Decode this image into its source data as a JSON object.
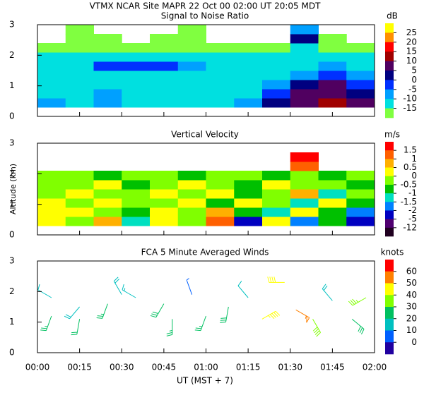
{
  "title": "VTMX  NCAR Site  MAPR 22 Oct 00  02:00 UT  20:05  MDT",
  "chart_data": [
    {
      "type": "heatmap",
      "title": "Signal to Noise Ratio",
      "x": [
        5,
        15,
        25,
        35,
        45,
        55,
        65,
        75,
        85,
        95,
        105,
        115
      ],
      "y": [
        0.45,
        0.75,
        1.05,
        1.35,
        1.65,
        1.95,
        2.25,
        2.55,
        2.85
      ],
      "z": [
        [
          -8,
          -10,
          -6,
          -10,
          -10,
          -12,
          -10,
          -8,
          2,
          8,
          12,
          8
        ],
        [
          -10,
          -12,
          -8,
          -10,
          -12,
          -12,
          -10,
          -10,
          -2,
          6,
          10,
          4
        ],
        [
          -12,
          -10,
          -10,
          -12,
          -12,
          -14,
          -12,
          -12,
          -6,
          2,
          6,
          -2
        ],
        [
          -14,
          -12,
          -12,
          -10,
          -12,
          -14,
          -14,
          -12,
          -10,
          -6,
          -4,
          -8
        ],
        [
          -12,
          -10,
          -2,
          -2,
          0,
          -8,
          -12,
          -12,
          -12,
          -10,
          -8,
          -10
        ],
        [
          -14,
          -14,
          -12,
          -12,
          -12,
          -14,
          -14,
          -14,
          -12,
          -14,
          -12,
          -12
        ],
        [
          -16,
          -16,
          -16,
          -17,
          -16,
          -16,
          -17,
          -16,
          -16,
          -14,
          -16,
          -16
        ],
        [
          null,
          -16,
          -16,
          null,
          -17,
          -16,
          null,
          null,
          null,
          5,
          -16,
          null
        ],
        [
          null,
          -17,
          null,
          null,
          null,
          -16,
          null,
          null,
          null,
          -8,
          null,
          null
        ]
      ],
      "xlim": [
        0,
        120
      ],
      "xticks": [
        {
          "value": 0,
          "label": "00:00"
        },
        {
          "value": 15,
          "label": "00:15"
        },
        {
          "value": 30,
          "label": "00:30"
        },
        {
          "value": 45,
          "label": "00:45"
        },
        {
          "value": 60,
          "label": "01:00"
        },
        {
          "value": 75,
          "label": "01:15"
        },
        {
          "value": 90,
          "label": "01:30"
        },
        {
          "value": 105,
          "label": "01:45"
        },
        {
          "value": 120,
          "label": "02:00"
        }
      ],
      "ylim": [
        0,
        3
      ],
      "yticks": [
        0,
        1,
        2,
        3
      ],
      "colorbar": {
        "label": "dB",
        "ticks": [
          25,
          20,
          15,
          10,
          5,
          0,
          -5,
          -10,
          -15
        ],
        "colors": [
          "#ffff00",
          "#ff9000",
          "#ff0000",
          "#a00000",
          "#500060",
          "#000080",
          "#0030ff",
          "#00a0ff",
          "#00e0e0",
          "#80ff40"
        ]
      }
    },
    {
      "type": "heatmap",
      "title": "Vertical Velocity",
      "ylabel": "Altitude (km)",
      "x": [
        5,
        15,
        25,
        35,
        45,
        55,
        65,
        75,
        85,
        95,
        105,
        115
      ],
      "y": [
        0.45,
        0.75,
        1.05,
        1.35,
        1.65,
        1.95,
        2.25,
        2.55,
        2.85
      ],
      "z": [
        [
          0.3,
          -0.3,
          0.6,
          -1.2,
          0.2,
          -0.4,
          1.2,
          -2.5,
          0.4,
          -1.6,
          -0.8,
          -3
        ],
        [
          0.4,
          0.1,
          -0.3,
          -0.6,
          0.3,
          -0.2,
          0.7,
          -0.7,
          -1.2,
          0.2,
          -0.7,
          -1.8
        ],
        [
          0.2,
          -0.2,
          0.1,
          -0.4,
          -0.3,
          0.3,
          -0.6,
          0.4,
          -0.2,
          -1.1,
          0.3,
          -0.6
        ],
        [
          -0.3,
          0.2,
          -0.4,
          -0.2,
          0.4,
          -0.3,
          0.1,
          -0.7,
          -0.4,
          0.6,
          -1.3,
          -0.4
        ],
        [
          -0.2,
          -0.4,
          0.3,
          -0.6,
          -0.1,
          0.2,
          -0.3,
          -0.6,
          0.3,
          -0.4,
          -0.2,
          -0.7
        ],
        [
          -0.4,
          -0.3,
          -0.6,
          -0.2,
          -0.4,
          -0.6,
          -0.2,
          -0.4,
          -0.7,
          -0.3,
          -0.6,
          -0.4
        ],
        [
          null,
          null,
          null,
          null,
          null,
          null,
          null,
          null,
          null,
          1.2,
          null,
          null
        ],
        [
          null,
          null,
          null,
          null,
          null,
          null,
          null,
          null,
          null,
          1.7,
          null,
          null
        ],
        [
          null,
          null,
          null,
          null,
          null,
          null,
          null,
          null,
          null,
          null,
          null,
          null
        ]
      ],
      "xlim": [
        0,
        120
      ],
      "xticks": [
        {
          "value": 0,
          "label": "00:00"
        },
        {
          "value": 15,
          "label": "00:15"
        },
        {
          "value": 30,
          "label": "00:30"
        },
        {
          "value": 45,
          "label": "00:45"
        },
        {
          "value": 60,
          "label": "01:00"
        },
        {
          "value": 75,
          "label": "01:15"
        },
        {
          "value": 90,
          "label": "01:30"
        },
        {
          "value": 105,
          "label": "01:45"
        },
        {
          "value": 120,
          "label": "02:00"
        }
      ],
      "ylim": [
        0,
        3
      ],
      "yticks": [
        0,
        1,
        2,
        3
      ],
      "colorbar": {
        "label": "m/s",
        "ticks": [
          1.5,
          1,
          0.5,
          0,
          -0.5,
          -1,
          -1.5,
          -2,
          -5,
          -12
        ],
        "colors": [
          "#ff0000",
          "#ff6000",
          "#ffb000",
          "#ffff00",
          "#80ff00",
          "#00c000",
          "#00e0c0",
          "#0080ff",
          "#0000c0",
          "#500070",
          "#200020"
        ]
      }
    },
    {
      "type": "barbs",
      "title": "FCA 5 Minute Averaged Winds",
      "xlabel": "UT  (MST + 7)",
      "barbs": [
        {
          "t": 5,
          "alt": 1.8,
          "speed": 12,
          "dir": 300
        },
        {
          "t": 5,
          "alt": 1.2,
          "speed": 25,
          "dir": 200
        },
        {
          "t": 15,
          "alt": 1.5,
          "speed": 20,
          "dir": 220
        },
        {
          "t": 15,
          "alt": 1.1,
          "speed": 22,
          "dir": 190
        },
        {
          "t": 25,
          "alt": 1.6,
          "speed": 25,
          "dir": 200
        },
        {
          "t": 30,
          "alt": 1.9,
          "speed": 20,
          "dir": 330
        },
        {
          "t": 35,
          "alt": 1.8,
          "speed": 15,
          "dir": 300
        },
        {
          "t": 45,
          "alt": 1.6,
          "speed": 30,
          "dir": 210
        },
        {
          "t": 48,
          "alt": 1.1,
          "speed": 25,
          "dir": 180
        },
        {
          "t": 55,
          "alt": 1.9,
          "speed": 8,
          "dir": 340
        },
        {
          "t": 60,
          "alt": 1.2,
          "speed": 25,
          "dir": 200
        },
        {
          "t": 68,
          "alt": 1.5,
          "speed": 30,
          "dir": 190
        },
        {
          "t": 75,
          "alt": 1.8,
          "speed": 12,
          "dir": 320
        },
        {
          "t": 80,
          "alt": 1.1,
          "speed": 45,
          "dir": 60
        },
        {
          "t": 88,
          "alt": 2.3,
          "speed": 42,
          "dir": 270
        },
        {
          "t": 92,
          "alt": 1.4,
          "speed": 55,
          "dir": 120
        },
        {
          "t": 98,
          "alt": 1.1,
          "speed": 40,
          "dir": 150
        },
        {
          "t": 105,
          "alt": 1.7,
          "speed": 20,
          "dir": 320
        },
        {
          "t": 112,
          "alt": 1.1,
          "speed": 30,
          "dir": 130
        },
        {
          "t": 117,
          "alt": 1.8,
          "speed": 35,
          "dir": 240
        }
      ],
      "xlim": [
        0,
        120
      ],
      "xticks": [
        {
          "value": 0,
          "label": "00:00"
        },
        {
          "value": 15,
          "label": "00:15"
        },
        {
          "value": 30,
          "label": "00:30"
        },
        {
          "value": 45,
          "label": "00:45"
        },
        {
          "value": 60,
          "label": "01:00"
        },
        {
          "value": 75,
          "label": "01:15"
        },
        {
          "value": 90,
          "label": "01:30"
        },
        {
          "value": 105,
          "label": "01:45"
        },
        {
          "value": 120,
          "label": "02:00"
        }
      ],
      "ylim": [
        0,
        3
      ],
      "yticks": [
        0,
        1,
        2,
        3
      ],
      "colorbar": {
        "label": "knots",
        "ticks": [
          60,
          50,
          40,
          30,
          20,
          10,
          0
        ],
        "colors": [
          "#ff0000",
          "#ff8000",
          "#ffff00",
          "#80ff00",
          "#00c060",
          "#00c0c0",
          "#0060ff",
          "#2000a0"
        ]
      }
    }
  ]
}
